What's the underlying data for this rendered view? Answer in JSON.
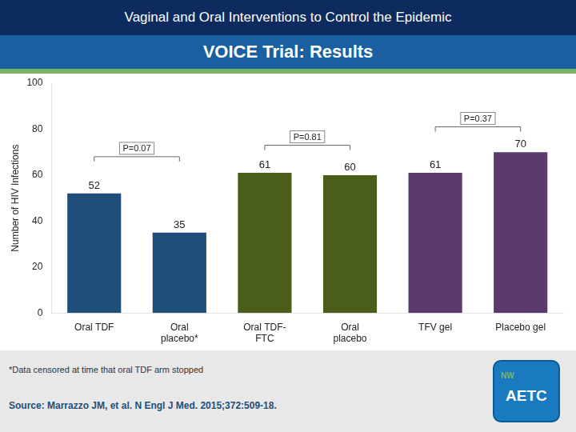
{
  "chart_data": {
    "type": "bar",
    "title": "Vaginal and Oral Interventions to Control the Epidemic",
    "subtitle": "VOICE Trial: Results",
    "categories": [
      "Oral TDF",
      "Oral\nplacebo*",
      "Oral TDF-\nFTC",
      "Oral\nplacebo",
      "TFV gel",
      "Placebo gel"
    ],
    "values": [
      52,
      35,
      61,
      60,
      61,
      70
    ],
    "colors": [
      "#1f4e79",
      "#1f4e79",
      "#4a5e1a",
      "#4a5e1a",
      "#5b3a6e",
      "#5b3a6e"
    ],
    "y_label": "Number of HIV Infections",
    "ylim": [
      0,
      100
    ],
    "yticks": [
      0,
      20,
      40,
      60,
      80,
      100
    ],
    "grid": false,
    "data_labels": true,
    "annotations": [
      {
        "text": "P=0.07",
        "from": "Oral TDF",
        "to": "Oral\nplacebo*",
        "y": 68
      },
      {
        "text": "P=0.81",
        "from": "Oral TDF-\nFTC",
        "to": "Oral\nplacebo",
        "y": 73
      },
      {
        "text": "P=0.37",
        "from": "TFV gel",
        "to": "Placebo gel",
        "y": 81
      },
      {
        "text": "*Data censored at time that oral TDF arm stopped"
      },
      {
        "text": "Source: Marrazzo JM, et al. N Engl J Med. 2015;372:509-18."
      },
      {
        "text": "NW"
      },
      {
        "text": "AETC"
      }
    ]
  }
}
